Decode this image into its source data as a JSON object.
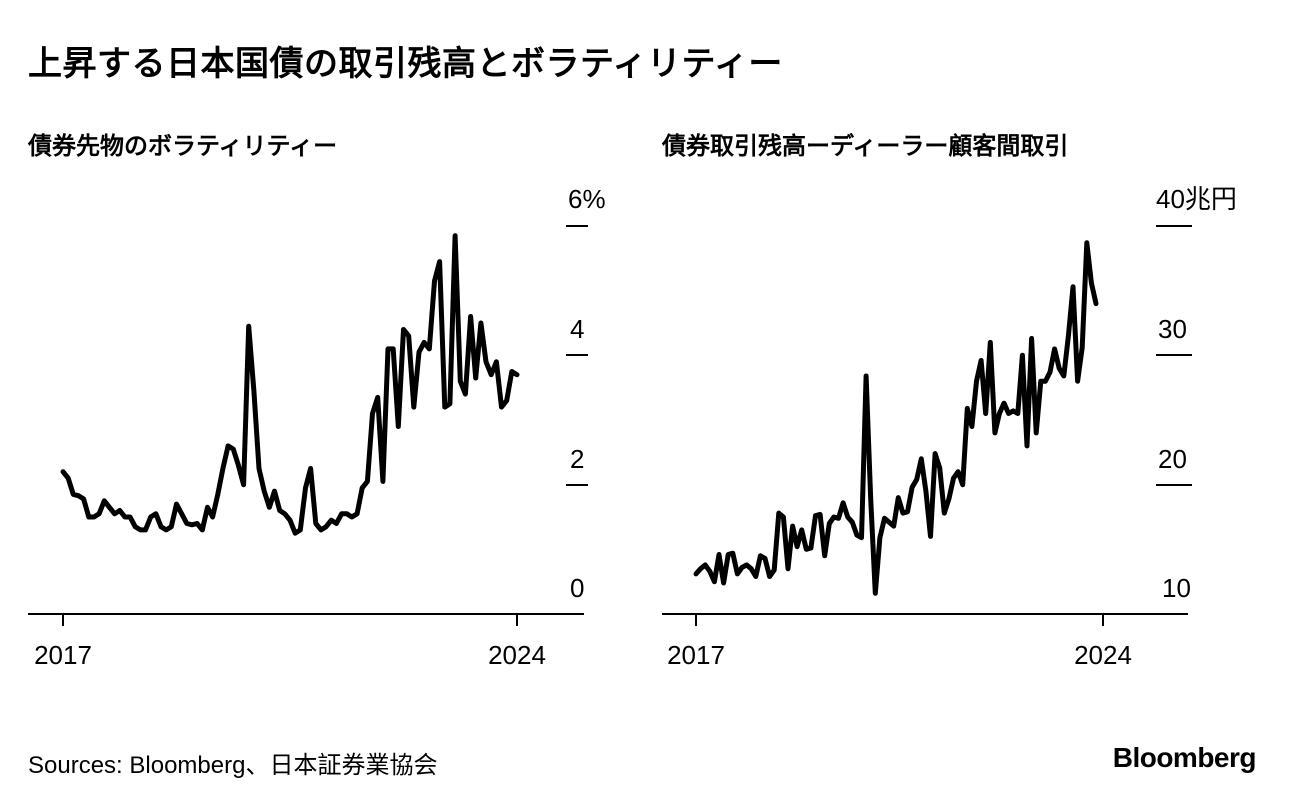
{
  "title": "上昇する日本国債の取引残高とボラティリティー",
  "source": "Sources: Bloomberg、日本証券業協会",
  "logo": "Bloomberg",
  "chart_data": [
    {
      "type": "line",
      "title": "債券先物のボラティリティー",
      "x_start": "2017-01",
      "x_end": "2024-01",
      "x_tick_labels": [
        "2017",
        "2024"
      ],
      "y_tick_labels": [
        "6%",
        "4",
        "2",
        "0"
      ],
      "y_ticks": [
        6,
        4,
        2,
        0
      ],
      "ylim": [
        0,
        6
      ],
      "line_color": "#000000",
      "values": [
        2.2,
        2.1,
        1.85,
        1.83,
        1.78,
        1.5,
        1.5,
        1.55,
        1.75,
        1.65,
        1.55,
        1.6,
        1.5,
        1.5,
        1.35,
        1.3,
        1.3,
        1.5,
        1.55,
        1.35,
        1.3,
        1.35,
        1.7,
        1.55,
        1.4,
        1.38,
        1.4,
        1.3,
        1.65,
        1.5,
        1.85,
        2.25,
        2.6,
        2.55,
        2.3,
        2.0,
        4.45,
        3.45,
        2.25,
        1.9,
        1.65,
        1.9,
        1.6,
        1.55,
        1.45,
        1.25,
        1.3,
        1.95,
        2.25,
        1.4,
        1.3,
        1.35,
        1.45,
        1.4,
        1.55,
        1.55,
        1.5,
        1.55,
        1.95,
        2.05,
        3.1,
        3.35,
        2.05,
        4.1,
        4.1,
        2.9,
        4.4,
        4.3,
        3.2,
        4.05,
        4.2,
        4.1,
        5.15,
        5.45,
        3.2,
        3.25,
        5.85,
        3.6,
        3.4,
        4.6,
        3.65,
        4.5,
        3.9,
        3.7,
        3.9,
        3.2,
        3.3,
        3.75,
        3.7
      ]
    },
    {
      "type": "line",
      "title": "債券取引残高ーディーラー顧客間取引",
      "x_start": "2017-01",
      "x_end": "2024-01",
      "x_tick_labels": [
        "2017",
        "2024"
      ],
      "y_tick_labels": [
        "40兆円",
        "30",
        "20",
        "10"
      ],
      "y_ticks": [
        40,
        30,
        20,
        10
      ],
      "ylim": [
        10,
        40
      ],
      "line_color": "#000000",
      "values": [
        13.1,
        13.5,
        13.8,
        13.3,
        12.5,
        14.6,
        12.4,
        14.6,
        14.7,
        13.1,
        13.6,
        13.8,
        13.5,
        12.9,
        14.5,
        14.3,
        12.9,
        13.4,
        17.8,
        17.5,
        13.5,
        16.8,
        15.2,
        16.5,
        15.0,
        15.1,
        17.6,
        17.7,
        14.5,
        17.0,
        17.5,
        17.4,
        18.6,
        17.5,
        17.1,
        16.1,
        15.9,
        28.4,
        18.9,
        11.6,
        15.9,
        17.4,
        17.1,
        16.8,
        19.0,
        17.8,
        17.9,
        19.8,
        20.4,
        22.0,
        19.5,
        16.0,
        22.4,
        21.3,
        17.8,
        18.9,
        20.5,
        21.0,
        20.0,
        25.9,
        24.5,
        28.0,
        29.6,
        25.5,
        31.0,
        24.0,
        25.5,
        26.3,
        25.5,
        25.7,
        25.5,
        30.0,
        23.0,
        31.3,
        24.0,
        28.0,
        28.0,
        28.7,
        30.5,
        29.0,
        28.4,
        31.5,
        35.3,
        28.0,
        30.6,
        38.7,
        35.6,
        34.0
      ]
    }
  ]
}
